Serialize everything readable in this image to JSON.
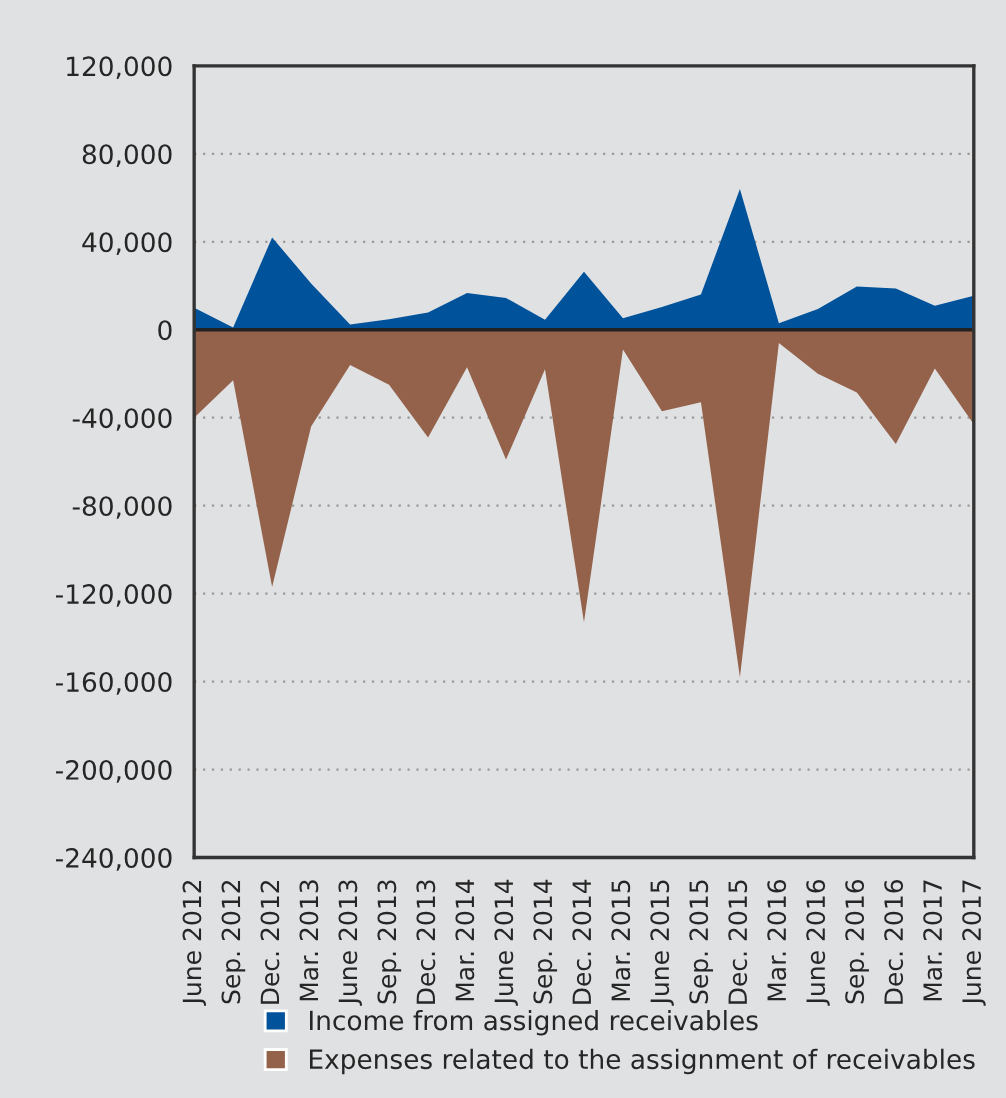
{
  "chart_data": {
    "type": "area",
    "categories": [
      "June 2012",
      "Sep. 2012",
      "Dec. 2012",
      "Mar. 2013",
      "June 2013",
      "Sep. 2013",
      "Dec. 2013",
      "Mar. 2014",
      "June 2014",
      "Sep. 2014",
      "Dec. 2014",
      "Mar. 2015",
      "June 2015",
      "Sep. 2015",
      "Dec. 2015",
      "Mar. 2016",
      "June 2016",
      "Sep. 2016",
      "Dec. 2016",
      "Mar. 2017",
      "June 2017"
    ],
    "series": [
      {
        "name": "Income from assigned receivables",
        "color": "#00529b",
        "values": [
          10000,
          1000,
          42000,
          21000,
          2400,
          4800,
          7900,
          16700,
          14500,
          4500,
          26400,
          5200,
          10300,
          16000,
          64000,
          3000,
          9400,
          19700,
          18800,
          10900,
          15500
        ]
      },
      {
        "name": "Expenses related to the assignment of receivables",
        "color": "#94624a",
        "values": [
          -40000,
          -23000,
          -117000,
          -44000,
          -16000,
          -25000,
          -49000,
          -17000,
          -59000,
          -18000,
          -133000,
          -9000,
          -37000,
          -33000,
          -158000,
          -6000,
          -20000,
          -28500,
          -52000,
          -17600,
          -43000
        ]
      }
    ],
    "ylim": [
      -240000,
      120000
    ],
    "yticks": [
      {
        "value": -240000,
        "label": "-240,000"
      },
      {
        "value": -200000,
        "label": "-200,000"
      },
      {
        "value": -160000,
        "label": "-160,000"
      },
      {
        "value": -120000,
        "label": "-120,000"
      },
      {
        "value": -80000,
        "label": "-80,000"
      },
      {
        "value": -40000,
        "label": "-40,000"
      },
      {
        "value": 0,
        "label": "0"
      },
      {
        "value": 40000,
        "label": "40,000"
      },
      {
        "value": 80000,
        "label": "80,000"
      },
      {
        "value": 120000,
        "label": "120,000"
      }
    ],
    "grid": "y",
    "legend": "bottom"
  }
}
